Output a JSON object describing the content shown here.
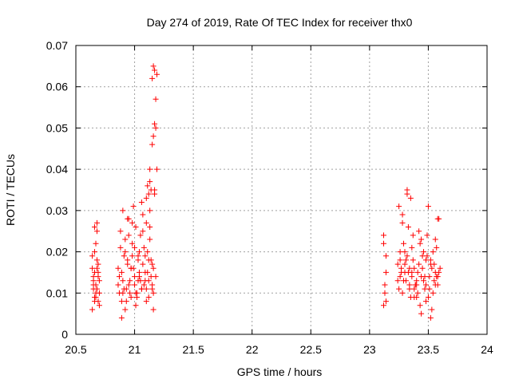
{
  "chart_data": {
    "type": "scatter",
    "title": "Day 274 of 2019, Rate Of TEC Index for receiver thx0",
    "xlabel": "GPS time / hours",
    "ylabel": "ROTI / TECUs",
    "xlim": [
      20.5,
      24
    ],
    "ylim": [
      0,
      0.07
    ],
    "x_ticks": [
      "20.5",
      "21",
      "21.5",
      "22",
      "22.5",
      "23",
      "23.5",
      "24"
    ],
    "y_ticks": [
      "0",
      "0.01",
      "0.02",
      "0.03",
      "0.04",
      "0.05",
      "0.06",
      "0.07"
    ],
    "grid": true,
    "marker": "+",
    "color": "#ff0000",
    "series": [
      {
        "name": "ROTI",
        "x": [
          20.64,
          20.65,
          20.66,
          20.67,
          20.68,
          20.69,
          20.7,
          20.64,
          20.66,
          20.68,
          20.7,
          20.65,
          20.67,
          20.69,
          20.66,
          20.68,
          20.65,
          20.67,
          20.69,
          20.7,
          20.64,
          20.66,
          20.68,
          20.67,
          20.65,
          20.69,
          20.66,
          20.68,
          20.86,
          20.87,
          20.88,
          20.89,
          20.9,
          20.91,
          20.92,
          20.93,
          20.94,
          20.95,
          20.96,
          20.97,
          20.98,
          20.99,
          21.0,
          21.01,
          21.02,
          21.03,
          21.04,
          21.05,
          21.06,
          21.07,
          21.08,
          21.09,
          21.1,
          21.11,
          21.12,
          21.13,
          21.14,
          21.15,
          21.16,
          21.17,
          21.18,
          20.87,
          20.89,
          20.91,
          20.93,
          20.95,
          20.97,
          20.99,
          21.01,
          21.03,
          21.05,
          21.07,
          21.09,
          21.11,
          21.13,
          21.15,
          21.17,
          20.88,
          20.9,
          20.92,
          20.94,
          20.96,
          20.98,
          21.0,
          21.02,
          21.04,
          21.06,
          21.08,
          21.1,
          21.12,
          21.14,
          21.16,
          20.86,
          20.89,
          20.92,
          20.95,
          20.98,
          21.01,
          21.04,
          21.07,
          21.1,
          21.13,
          21.16,
          20.9,
          20.94,
          20.97,
          21.0,
          21.03,
          21.06,
          21.09,
          21.12,
          21.15,
          21.1,
          21.11,
          21.12,
          21.13,
          21.14,
          21.15,
          21.16,
          21.17,
          21.18,
          21.19,
          21.13,
          21.15,
          21.16,
          21.17,
          21.18,
          21.19,
          23.12,
          23.13,
          23.14,
          23.12,
          23.14,
          23.13,
          23.12,
          23.14,
          23.24,
          23.26,
          23.28,
          23.3,
          23.32,
          23.34,
          23.36,
          23.38,
          23.4,
          23.42,
          23.44,
          23.46,
          23.48,
          23.5,
          23.52,
          23.54,
          23.56,
          23.58,
          23.25,
          23.27,
          23.29,
          23.31,
          23.33,
          23.35,
          23.37,
          23.39,
          23.41,
          23.43,
          23.45,
          23.47,
          23.49,
          23.51,
          23.53,
          23.55,
          23.57,
          23.24,
          23.28,
          23.32,
          23.36,
          23.4,
          23.44,
          23.48,
          23.52,
          23.56,
          23.6,
          23.26,
          23.3,
          23.34,
          23.38,
          23.42,
          23.46,
          23.5,
          23.54,
          23.58,
          23.25,
          23.29,
          23.33,
          23.37,
          23.41,
          23.45,
          23.49,
          23.53,
          23.57,
          23.27,
          23.31,
          23.35,
          23.39,
          23.43,
          23.47,
          23.51,
          23.55,
          23.59,
          23.26,
          23.28,
          23.3,
          23.32,
          23.34,
          23.36,
          23.38,
          23.4,
          23.44,
          23.48,
          23.52,
          23.56,
          23.58,
          23.59
        ],
        "y": [
          0.006,
          0.012,
          0.015,
          0.01,
          0.018,
          0.008,
          0.013,
          0.016,
          0.02,
          0.011,
          0.007,
          0.014,
          0.009,
          0.017,
          0.026,
          0.025,
          0.013,
          0.012,
          0.015,
          0.01,
          0.019,
          0.008,
          0.027,
          0.022,
          0.011,
          0.014,
          0.009,
          0.016,
          0.012,
          0.01,
          0.025,
          0.015,
          0.03,
          0.011,
          0.02,
          0.008,
          0.018,
          0.028,
          0.013,
          0.009,
          0.022,
          0.016,
          0.012,
          0.026,
          0.01,
          0.019,
          0.014,
          0.024,
          0.011,
          0.017,
          0.021,
          0.013,
          0.027,
          0.015,
          0.009,
          0.023,
          0.018,
          0.012,
          0.016,
          0.034,
          0.014,
          0.014,
          0.008,
          0.019,
          0.011,
          0.024,
          0.016,
          0.031,
          0.01,
          0.018,
          0.013,
          0.029,
          0.015,
          0.02,
          0.026,
          0.011,
          0.035,
          0.021,
          0.013,
          0.006,
          0.017,
          0.01,
          0.027,
          0.014,
          0.009,
          0.02,
          0.032,
          0.012,
          0.008,
          0.018,
          0.014,
          0.01,
          0.016,
          0.004,
          0.023,
          0.012,
          0.019,
          0.007,
          0.015,
          0.025,
          0.011,
          0.03,
          0.006,
          0.01,
          0.028,
          0.016,
          0.021,
          0.013,
          0.011,
          0.019,
          0.013,
          0.017,
          0.033,
          0.036,
          0.034,
          0.037,
          0.035,
          0.046,
          0.048,
          0.051,
          0.057,
          0.063,
          0.04,
          0.062,
          0.065,
          0.064,
          0.05,
          0.04,
          0.007,
          0.012,
          0.019,
          0.024,
          0.015,
          0.01,
          0.022,
          0.008,
          0.013,
          0.018,
          0.029,
          0.015,
          0.034,
          0.011,
          0.021,
          0.016,
          0.009,
          0.025,
          0.014,
          0.02,
          0.012,
          0.031,
          0.017,
          0.01,
          0.023,
          0.028,
          0.011,
          0.016,
          0.022,
          0.013,
          0.026,
          0.009,
          0.018,
          0.012,
          0.015,
          0.007,
          0.019,
          0.014,
          0.024,
          0.011,
          0.016,
          0.013,
          0.021,
          0.017,
          0.01,
          0.019,
          0.014,
          0.012,
          0.023,
          0.008,
          0.018,
          0.015,
          0.016,
          0.014,
          0.02,
          0.016,
          0.011,
          0.017,
          0.013,
          0.009,
          0.02,
          0.012,
          0.031,
          0.013,
          0.015,
          0.024,
          0.01,
          0.016,
          0.019,
          0.006,
          0.014,
          0.015,
          0.018,
          0.033,
          0.012,
          0.022,
          0.011,
          0.014,
          0.017,
          0.015,
          0.02,
          0.027,
          0.017,
          0.035,
          0.012,
          0.015,
          0.009,
          0.013,
          0.005,
          0.018,
          0.004,
          0.012,
          0.014,
          0.028
        ]
      }
    ]
  }
}
